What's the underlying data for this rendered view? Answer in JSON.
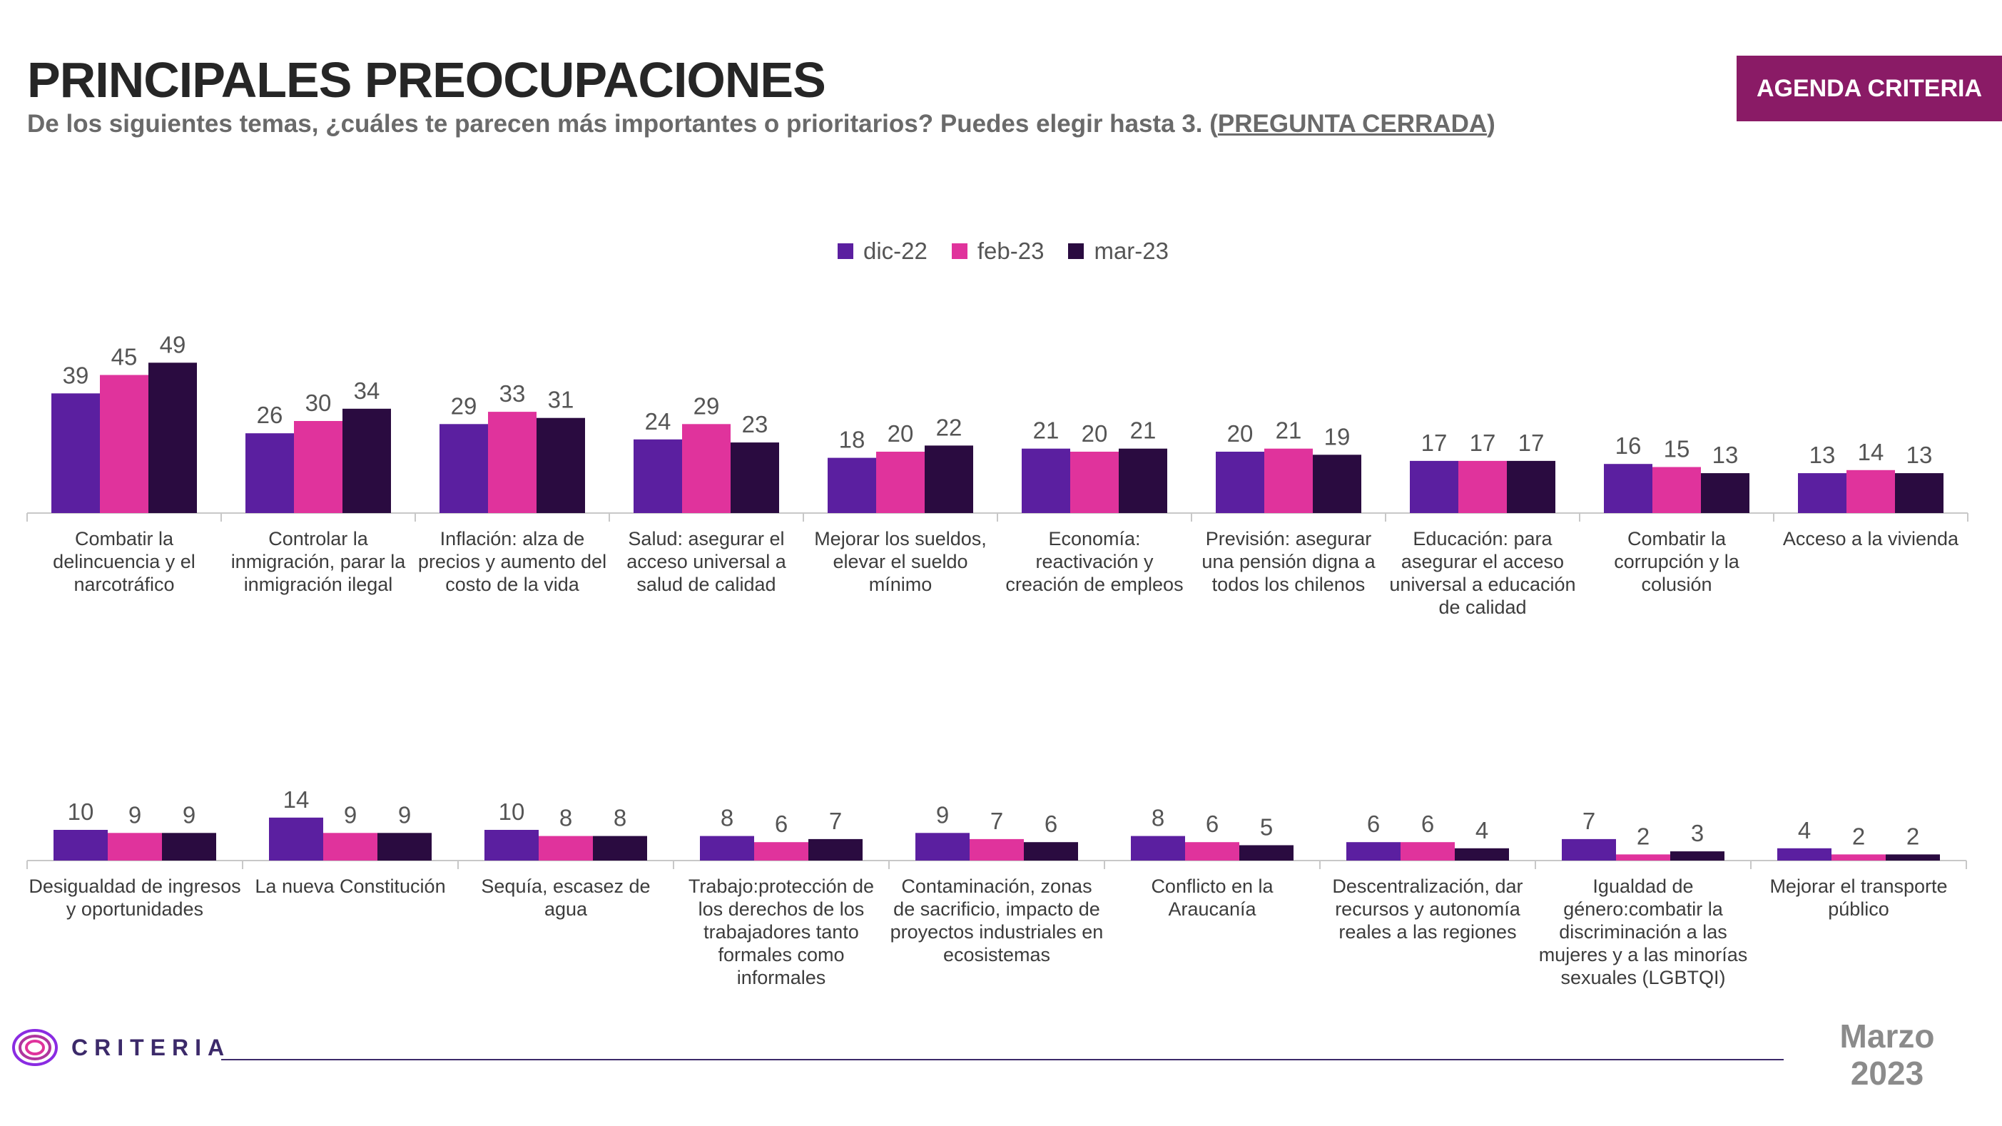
{
  "header": {
    "title": "PRINCIPALES PREOCUPACIONES",
    "subtitle_text": "De los siguientes temas, ¿cuáles te parecen más importantes o prioritarios? Puedes elegir hasta 3. (",
    "subtitle_emphasis": "PREGUNTA CERRADA",
    "subtitle_close": ")",
    "badge": "AGENDA CRITERIA"
  },
  "footer": {
    "brand": "CRITERIA",
    "logo_icon": "criteria-rings-icon",
    "date_month": "Marzo",
    "date_year": "2023"
  },
  "colors": {
    "dic-22": "#5b1fa0",
    "feb-23": "#e0339c",
    "mar-23": "#2a0b40",
    "badge": "#8a1b66",
    "axis": "#c8c8c8"
  },
  "chart_data": [
    {
      "type": "bar",
      "title": "",
      "xlabel": "",
      "ylabel": "",
      "legend_position": "top-center",
      "grid": false,
      "ylim": [
        0,
        49
      ],
      "categories": [
        "Combatir la delincuencia y el narcotráfico",
        "Controlar la inmigración, parar la inmigración ilegal",
        "Inflación: alza de precios y aumento del costo de la vida",
        "Salud: asegurar el acceso universal a salud de calidad",
        "Mejorar los sueldos, elevar el sueldo mínimo",
        "Economía: reactivación y creación de empleos",
        "Previsión: asegurar una pensión digna a todos los chilenos",
        "Educación: para asegurar el acceso universal a educación de calidad",
        "Combatir la corrupción y la colusión",
        "Acceso a la vivienda"
      ],
      "series": [
        {
          "name": "dic-22",
          "values": [
            39,
            26,
            29,
            24,
            18,
            21,
            20,
            17,
            16,
            13
          ]
        },
        {
          "name": "feb-23",
          "values": [
            45,
            30,
            33,
            29,
            20,
            20,
            21,
            17,
            15,
            14
          ]
        },
        {
          "name": "mar-23",
          "values": [
            49,
            34,
            31,
            23,
            22,
            21,
            19,
            17,
            13,
            13
          ]
        }
      ]
    },
    {
      "type": "bar",
      "title": "",
      "xlabel": "",
      "ylabel": "",
      "grid": false,
      "ylim": [
        0,
        49
      ],
      "categories": [
        "Desigualdad de ingresos y oportunidades",
        "La nueva Constitución",
        "Sequía, escasez de agua",
        "Trabajo:protección de los derechos de los trabajadores tanto formales como informales",
        "Contaminación, zonas de sacrificio, impacto de proyectos industriales en ecosistemas",
        "Conflicto en la Araucanía",
        "Descentralización, dar recursos y autonomía reales a las regiones",
        "Igualdad de género:combatir la discriminación a las mujeres y a las minorías sexuales (LGBTQI)",
        "Mejorar el transporte público"
      ],
      "series": [
        {
          "name": "dic-22",
          "values": [
            10,
            14,
            10,
            8,
            9,
            8,
            6,
            7,
            4
          ]
        },
        {
          "name": "feb-23",
          "values": [
            9,
            9,
            8,
            6,
            7,
            6,
            6,
            2,
            2
          ]
        },
        {
          "name": "mar-23",
          "values": [
            9,
            9,
            8,
            7,
            6,
            5,
            4,
            3,
            2
          ]
        }
      ]
    }
  ]
}
